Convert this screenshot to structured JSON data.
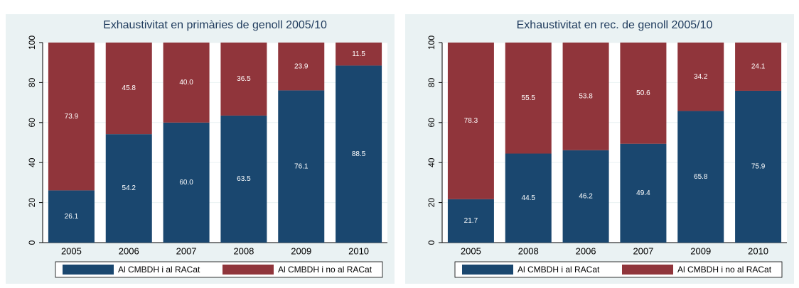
{
  "chart_data": [
    {
      "type": "stacked_bar",
      "title": "Exhaustivitat en primàries de genoll 2005/10",
      "categories": [
        "2005",
        "2006",
        "2007",
        "2008",
        "2009",
        "2010"
      ],
      "series": [
        {
          "name": "Al CMBDH i al RACat",
          "color": "#1a476f",
          "values": [
            26.1,
            54.2,
            60.0,
            63.5,
            76.1,
            88.5
          ],
          "value_labels": [
            "26.1",
            "54.2",
            "60.0",
            "63.5",
            "76.1",
            "88.5"
          ]
        },
        {
          "name": "Al CMBDH i no al RACat",
          "color": "#90353b",
          "values": [
            73.9,
            45.8,
            40.0,
            36.5,
            23.9,
            11.5
          ],
          "value_labels": [
            "73.9",
            "45.8",
            "40.0",
            "36.5",
            "23.9",
            "11.5"
          ]
        }
      ],
      "ylim": [
        0,
        100
      ],
      "yticks": [
        0,
        20,
        40,
        60,
        80,
        100
      ],
      "grid": true
    },
    {
      "type": "stacked_bar",
      "title": "Exhaustivitat en rec. de genoll 2005/10",
      "categories": [
        "2005",
        "2008",
        "2006",
        "2007",
        "2009",
        "2010"
      ],
      "series": [
        {
          "name": "Al CMBDH i al RACat",
          "color": "#1a476f",
          "values": [
            21.7,
            44.5,
            46.2,
            49.4,
            65.8,
            75.9
          ],
          "value_labels": [
            "21.7",
            "44.5",
            "46.2",
            "49.4",
            "65.8",
            "75.9"
          ]
        },
        {
          "name": "Al CMBDH i no al RACat",
          "color": "#90353b",
          "values": [
            78.3,
            55.5,
            53.8,
            50.6,
            34.2,
            24.1
          ],
          "value_labels": [
            "78.3",
            "55.5",
            "53.8",
            "50.6",
            "34.2",
            "24.1"
          ]
        }
      ],
      "ylim": [
        0,
        100
      ],
      "yticks": [
        0,
        20,
        40,
        60,
        80,
        100
      ],
      "grid": true
    }
  ]
}
